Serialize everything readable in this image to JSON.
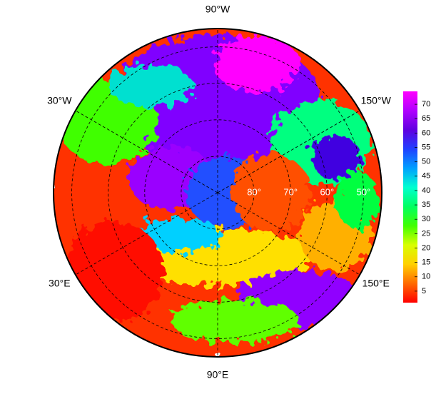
{
  "chart_data": {
    "type": "polar-map",
    "lat_range": [
      45,
      90
    ],
    "lon_ticks": [
      {
        "value": -90,
        "label": "90°W"
      },
      {
        "value": -30,
        "label": "30°W"
      },
      {
        "value": -150,
        "label": "150°W"
      },
      {
        "value": 30,
        "label": "30°E"
      },
      {
        "value": 150,
        "label": "150°E"
      },
      {
        "value": 90,
        "label": "90°E"
      }
    ],
    "lat_ticks": [
      {
        "value": 80,
        "label": "80°"
      },
      {
        "value": 70,
        "label": "70°"
      },
      {
        "value": 60,
        "label": "60°"
      },
      {
        "value": 50,
        "label": "50°"
      }
    ],
    "colorbar": {
      "clim": [
        1,
        74.5
      ],
      "ticks": [
        5,
        10,
        15,
        20,
        25,
        30,
        35,
        40,
        45,
        50,
        55,
        60,
        65,
        70
      ],
      "colormap": [
        "#ff0000",
        "#ff6a00",
        "#ffd000",
        "#d8ff00",
        "#40ff00",
        "#00ff60",
        "#00ffd0",
        "#00a0ff",
        "#2040ff",
        "#6000e0",
        "#b000ff",
        "#ff00ff"
      ]
    }
  }
}
